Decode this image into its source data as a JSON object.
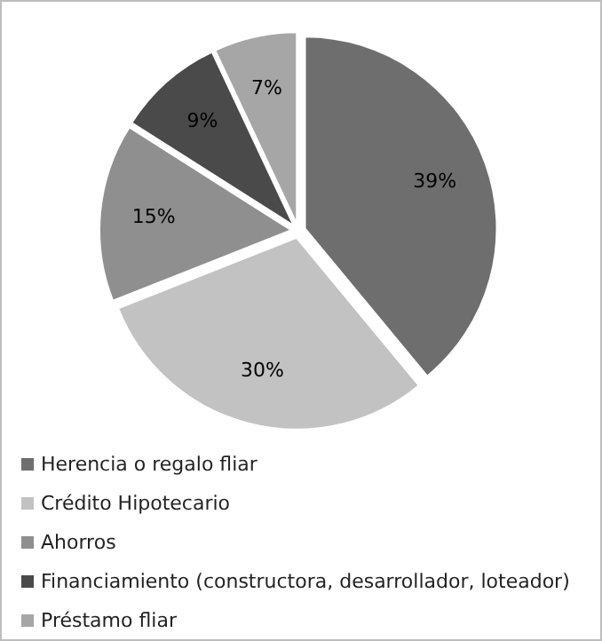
{
  "chart_data": {
    "type": "pie",
    "categories": [
      "Herencia o regalo fliar",
      "Crédito Hipotecario",
      "Ahorros",
      "Financiamiento (constructora, desarrollador, loteador)",
      "Préstamo fliar"
    ],
    "values": [
      39,
      30,
      15,
      9,
      7
    ],
    "value_labels": [
      "39%",
      "30%",
      "15%",
      "9%",
      "7%"
    ],
    "colors": [
      "#6e6e6e",
      "#c2c2c2",
      "#8f8f8f",
      "#4a4a4a",
      "#a6a6a6"
    ],
    "legend": "bottom"
  }
}
